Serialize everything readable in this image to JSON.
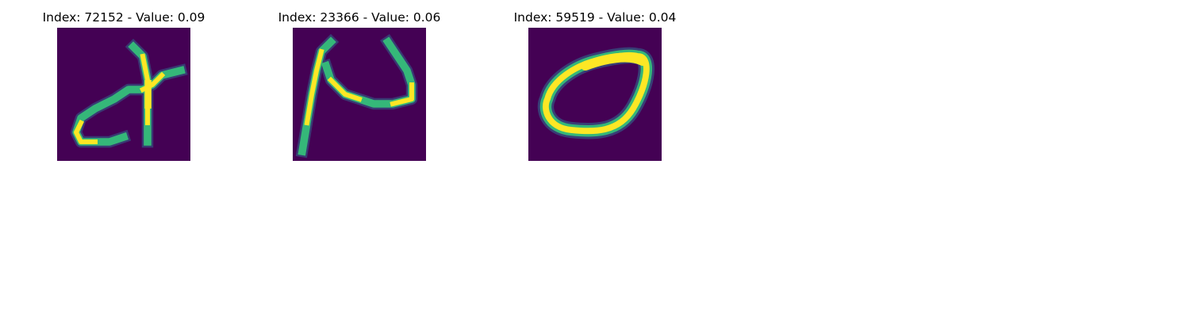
{
  "panels": [
    {
      "title": "Index: 72152 - Value: 0.09",
      "image_content": "handwritten-digit-4",
      "colormap": "viridis"
    },
    {
      "title": "Index: 23366 - Value: 0.06",
      "image_content": "handwritten-digit-4",
      "colormap": "viridis"
    },
    {
      "title": "Index: 59519 - Value: 0.04",
      "image_content": "handwritten-digit-0",
      "colormap": "viridis"
    }
  ],
  "colors": {
    "background": "#440154",
    "low": "#31688e",
    "mid": "#35b779",
    "high": "#fde725"
  }
}
